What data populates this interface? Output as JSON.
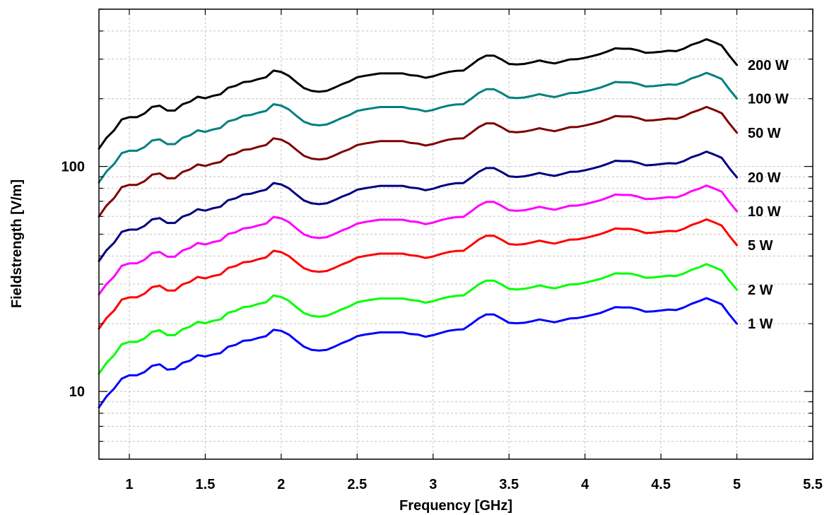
{
  "chart_data": {
    "type": "line",
    "xlabel": "Frequency [GHz]",
    "ylabel": "Fieldstrength [V/m]",
    "xlim": [
      0.8,
      5.5
    ],
    "ylim": [
      5,
      500
    ],
    "yscale": "log",
    "grid": true,
    "legend": "right-inline-labels",
    "x_ticks": [
      "1",
      "1.5",
      "2",
      "2.5",
      "3",
      "3.5",
      "4",
      "4.5",
      "5",
      "5.5"
    ],
    "y_ticks": [
      "10",
      "100"
    ],
    "x": [
      0.8,
      0.85,
      0.9,
      0.95,
      1.0,
      1.05,
      1.1,
      1.15,
      1.2,
      1.25,
      1.3,
      1.35,
      1.4,
      1.45,
      1.5,
      1.55,
      1.6,
      1.65,
      1.7,
      1.75,
      1.8,
      1.85,
      1.9,
      1.95,
      2.0,
      2.05,
      2.1,
      2.15,
      2.2,
      2.25,
      2.3,
      2.35,
      2.4,
      2.45,
      2.5,
      2.55,
      2.6,
      2.65,
      2.7,
      2.75,
      2.8,
      2.85,
      2.9,
      2.95,
      3.0,
      3.05,
      3.1,
      3.15,
      3.2,
      3.25,
      3.3,
      3.35,
      3.4,
      3.45,
      3.5,
      3.55,
      3.6,
      3.65,
      3.7,
      3.75,
      3.8,
      3.85,
      3.9,
      3.95,
      4.0,
      4.05,
      4.1,
      4.15,
      4.2,
      4.25,
      4.3,
      4.35,
      4.4,
      4.45,
      4.5,
      4.55,
      4.6,
      4.65,
      4.7,
      4.75,
      4.8,
      4.85,
      4.9,
      4.95,
      5.0
    ],
    "series": [
      {
        "name": "1 W",
        "color": "#0000ff",
        "values": [
          8.5,
          9.5,
          10.3,
          11.4,
          11.8,
          11.8,
          12.2,
          13.0,
          13.2,
          12.5,
          12.6,
          13.4,
          13.7,
          14.5,
          14.3,
          14.6,
          14.8,
          15.8,
          16.1,
          16.8,
          16.9,
          17.3,
          17.6,
          18.8,
          18.6,
          17.9,
          16.8,
          15.8,
          15.3,
          15.2,
          15.3,
          15.8,
          16.4,
          16.9,
          17.6,
          17.9,
          18.1,
          18.3,
          18.3,
          18.3,
          18.3,
          18.0,
          17.9,
          17.5,
          17.8,
          18.2,
          18.6,
          18.8,
          18.9,
          19.9,
          21.1,
          22.0,
          22.0,
          21.1,
          20.2,
          20.1,
          20.2,
          20.5,
          20.9,
          20.6,
          20.3,
          20.7,
          21.1,
          21.2,
          21.5,
          21.9,
          22.3,
          23.0,
          23.7,
          23.6,
          23.6,
          23.2,
          22.6,
          22.7,
          22.9,
          23.1,
          23.0,
          23.6,
          24.5,
          25.2,
          26.0,
          25.2,
          24.4,
          22.0,
          20.0
        ]
      },
      {
        "name": "2 W",
        "color": "#00ff00",
        "values": [
          12.0,
          13.4,
          14.5,
          16.2,
          16.6,
          16.6,
          17.2,
          18.4,
          18.7,
          17.8,
          17.8,
          18.9,
          19.4,
          20.4,
          20.1,
          20.6,
          20.9,
          22.4,
          22.8,
          23.7,
          23.9,
          24.5,
          24.9,
          26.7,
          26.3,
          25.3,
          23.7,
          22.3,
          21.7,
          21.5,
          21.7,
          22.4,
          23.2,
          23.9,
          24.9,
          25.3,
          25.6,
          25.9,
          25.9,
          25.9,
          25.9,
          25.5,
          25.3,
          24.8,
          25.2,
          25.8,
          26.3,
          26.6,
          26.7,
          28.2,
          29.9,
          31.1,
          31.1,
          29.9,
          28.6,
          28.4,
          28.6,
          29.0,
          29.6,
          29.1,
          28.7,
          29.3,
          29.9,
          30.0,
          30.4,
          31.0,
          31.6,
          32.5,
          33.5,
          33.4,
          33.4,
          32.8,
          32.0,
          32.1,
          32.4,
          32.7,
          32.6,
          33.4,
          34.7,
          35.6,
          36.8,
          35.7,
          34.5,
          31.1,
          28.3
        ]
      },
      {
        "name": "5 W",
        "color": "#ff0000",
        "values": [
          19.0,
          21.2,
          22.9,
          25.6,
          26.2,
          26.2,
          27.2,
          29.1,
          29.5,
          28.1,
          28.1,
          29.9,
          30.7,
          32.3,
          31.8,
          32.6,
          33.1,
          35.4,
          36.1,
          37.5,
          37.8,
          38.7,
          39.4,
          42.2,
          41.6,
          40.0,
          37.5,
          35.3,
          34.3,
          34.0,
          34.3,
          35.4,
          36.7,
          37.8,
          39.4,
          40.0,
          40.5,
          41.0,
          41.0,
          41.0,
          41.0,
          40.3,
          40.0,
          39.2,
          39.8,
          40.8,
          41.6,
          42.1,
          42.2,
          44.6,
          47.3,
          49.2,
          49.2,
          47.3,
          45.2,
          44.9,
          45.2,
          45.9,
          46.8,
          46.0,
          45.4,
          46.3,
          47.3,
          47.4,
          48.1,
          49.0,
          50.0,
          51.4,
          53.0,
          52.8,
          52.8,
          51.9,
          50.6,
          50.8,
          51.2,
          51.7,
          51.5,
          52.8,
          54.9,
          56.3,
          58.2,
          56.5,
          54.6,
          49.2,
          44.7
        ]
      },
      {
        "name": "10 W",
        "color": "#ff00ff",
        "values": [
          27.0,
          30.0,
          32.4,
          36.2,
          37.1,
          37.1,
          38.5,
          41.2,
          41.7,
          39.7,
          39.7,
          42.3,
          43.4,
          45.7,
          45.0,
          46.1,
          46.8,
          50.1,
          51.0,
          53.0,
          53.5,
          54.7,
          55.7,
          59.7,
          58.8,
          56.6,
          53.0,
          49.9,
          48.5,
          48.1,
          48.5,
          50.1,
          51.9,
          53.5,
          55.7,
          56.6,
          57.3,
          58.0,
          58.0,
          58.0,
          58.0,
          57.0,
          56.6,
          55.4,
          56.3,
          57.7,
          58.8,
          59.5,
          59.7,
          63.1,
          66.9,
          69.6,
          69.6,
          66.9,
          63.9,
          63.5,
          63.9,
          64.9,
          66.2,
          65.1,
          64.2,
          65.5,
          66.9,
          67.0,
          68.0,
          69.3,
          70.7,
          72.7,
          75.0,
          74.7,
          74.7,
          73.4,
          71.6,
          71.8,
          72.4,
          73.1,
          72.8,
          74.7,
          77.6,
          79.6,
          82.3,
          79.9,
          77.2,
          69.6,
          63.2
        ]
      },
      {
        "name": "20 W",
        "color": "#00007f",
        "values": [
          38.0,
          42.4,
          45.8,
          51.2,
          52.4,
          52.4,
          54.4,
          58.2,
          58.9,
          56.1,
          56.1,
          59.8,
          61.4,
          64.6,
          63.6,
          65.2,
          66.2,
          70.8,
          72.2,
          75.0,
          75.6,
          77.4,
          78.8,
          84.4,
          83.2,
          80.0,
          75.0,
          70.6,
          68.6,
          68.0,
          68.6,
          70.8,
          73.4,
          75.6,
          78.8,
          80.0,
          81.0,
          82.0,
          82.0,
          82.0,
          82.0,
          80.6,
          80.0,
          78.4,
          79.6,
          81.6,
          83.2,
          84.2,
          84.4,
          89.2,
          94.6,
          98.4,
          98.4,
          94.6,
          90.4,
          89.8,
          90.4,
          91.8,
          93.6,
          92.0,
          90.8,
          92.6,
          94.6,
          94.8,
          96.2,
          98.0,
          100.0,
          102.8,
          106.0,
          105.6,
          105.6,
          103.8,
          101.2,
          101.6,
          102.4,
          103.4,
          103.0,
          105.6,
          109.8,
          112.6,
          116.4,
          113.0,
          109.2,
          98.4,
          89.4
        ]
      },
      {
        "name": "50 W",
        "color": "#7f0000",
        "values": [
          60.0,
          67.0,
          72.4,
          80.9,
          82.8,
          82.8,
          86.0,
          92.0,
          93.1,
          88.6,
          88.6,
          94.5,
          97.0,
          102.1,
          100.5,
          103.0,
          104.6,
          111.9,
          114.1,
          118.5,
          119.4,
          122.3,
          124.5,
          133.4,
          131.5,
          126.4,
          118.5,
          111.5,
          108.4,
          107.4,
          108.4,
          111.9,
          116.0,
          119.4,
          124.5,
          126.4,
          128.0,
          129.6,
          129.6,
          129.6,
          129.6,
          127.3,
          126.4,
          123.9,
          125.8,
          128.9,
          131.5,
          133.0,
          133.4,
          141.0,
          149.5,
          155.5,
          155.5,
          149.5,
          142.8,
          141.9,
          142.8,
          145.0,
          147.9,
          145.4,
          143.5,
          146.3,
          149.5,
          149.8,
          152.0,
          154.8,
          158.0,
          162.4,
          167.5,
          166.8,
          166.8,
          164.0,
          159.9,
          160.5,
          161.8,
          163.4,
          162.7,
          166.8,
          173.5,
          177.9,
          183.9,
          178.5,
          172.5,
          155.5,
          141.3
        ]
      },
      {
        "name": "100 W",
        "color": "#007f7f",
        "values": [
          85.0,
          95.0,
          102.6,
          114.7,
          117.4,
          117.4,
          121.9,
          130.4,
          132.0,
          125.7,
          125.7,
          134.0,
          137.5,
          144.7,
          142.5,
          146.0,
          148.3,
          158.6,
          161.7,
          168.0,
          169.3,
          173.4,
          176.5,
          189.1,
          186.4,
          179.2,
          168.0,
          158.1,
          153.7,
          152.3,
          153.7,
          158.6,
          164.4,
          169.3,
          176.5,
          179.2,
          181.4,
          183.7,
          183.7,
          183.7,
          183.7,
          180.5,
          179.2,
          175.6,
          178.3,
          182.8,
          186.4,
          188.6,
          189.1,
          199.8,
          211.9,
          220.4,
          220.4,
          211.9,
          202.5,
          201.2,
          202.5,
          205.6,
          209.7,
          206.1,
          203.4,
          207.4,
          211.9,
          212.4,
          215.5,
          219.5,
          224.0,
          230.3,
          237.4,
          236.5,
          236.5,
          232.5,
          226.7,
          227.6,
          229.4,
          231.6,
          230.7,
          236.5,
          246.0,
          252.2,
          260.7,
          253.1,
          244.6,
          220.4,
          200.3
        ]
      },
      {
        "name": "200 W",
        "color": "#000000",
        "values": [
          120.0,
          134.0,
          144.8,
          161.8,
          165.6,
          165.6,
          172.0,
          184.0,
          186.2,
          177.2,
          177.2,
          189.0,
          194.0,
          204.2,
          201.0,
          206.0,
          209.2,
          223.8,
          228.2,
          237.0,
          238.8,
          244.6,
          249.0,
          266.8,
          263.0,
          252.8,
          237.0,
          223.0,
          216.8,
          214.8,
          216.8,
          223.8,
          232.0,
          238.8,
          249.0,
          252.8,
          256.0,
          259.2,
          259.2,
          259.2,
          259.2,
          254.6,
          252.8,
          247.8,
          251.6,
          257.8,
          263.0,
          266.0,
          266.8,
          282.0,
          299.0,
          311.0,
          311.0,
          299.0,
          285.6,
          283.8,
          285.6,
          290.0,
          295.8,
          290.8,
          287.0,
          292.6,
          299.0,
          299.6,
          304.0,
          309.6,
          316.0,
          324.8,
          335.0,
          333.6,
          333.6,
          328.0,
          319.8,
          321.0,
          323.6,
          326.8,
          325.4,
          333.6,
          347.0,
          355.8,
          367.8,
          357.0,
          345.0,
          311.0,
          282.6
        ]
      }
    ]
  }
}
